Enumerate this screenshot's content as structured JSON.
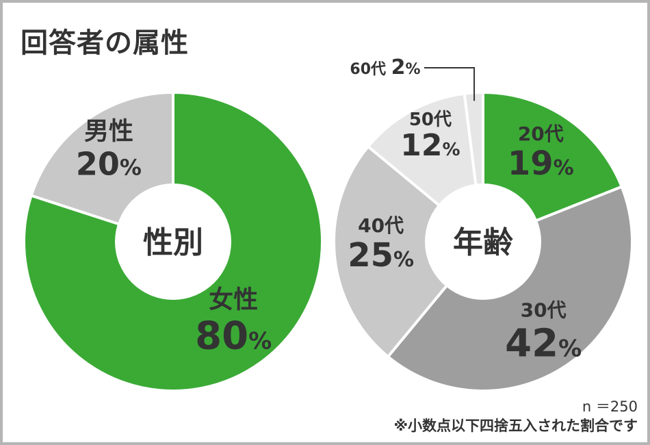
{
  "title": "回答者の属性",
  "footer": {
    "n": "n ＝250",
    "note": "※小数点以下四捨五入された割合です"
  },
  "colors": {
    "green": "#3aaa35",
    "gray_dark": "#9e9e9e",
    "gray_mid": "#c8c8c8",
    "gray_light": "#e6e6e6",
    "text": "#333333"
  },
  "chart_data": [
    {
      "type": "pie",
      "center_label": "性別",
      "categories": [
        "女性",
        "男性"
      ],
      "values": [
        80,
        20
      ],
      "value_labels": [
        "80",
        "20"
      ],
      "unit": "%",
      "colors": [
        "#3aaa35",
        "#c8c8c8"
      ]
    },
    {
      "type": "pie",
      "center_label": "年齢",
      "categories": [
        "20代",
        "30代",
        "40代",
        "50代",
        "60代"
      ],
      "values": [
        19,
        42,
        25,
        12,
        2
      ],
      "value_labels": [
        "19",
        "42",
        "25",
        "12",
        "2"
      ],
      "unit": "%",
      "colors": [
        "#3aaa35",
        "#9e9e9e",
        "#c8c8c8",
        "#e6e6e6",
        "#e6e6e6"
      ]
    }
  ]
}
